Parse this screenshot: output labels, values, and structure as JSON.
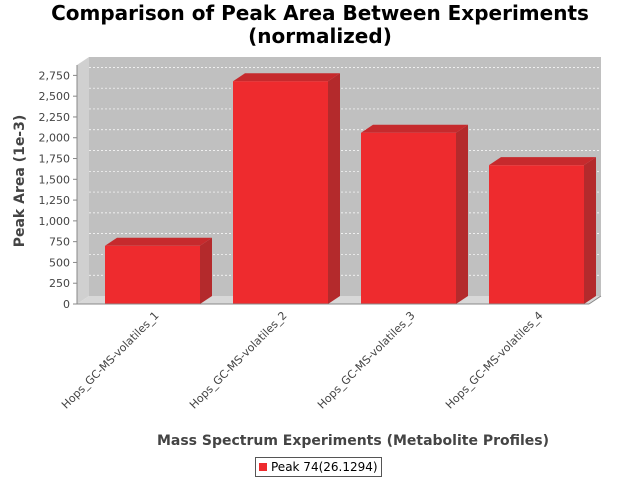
{
  "chart_data": {
    "type": "bar",
    "title_lines": [
      "Comparison of Peak Area Between Experiments",
      "(normalized)"
    ],
    "xlabel": "Mass Spectrum Experiments (Metabolite Profiles)",
    "ylabel": "Peak Area (1e-3)",
    "categories": [
      "Hops_GC-MS-volatiles_1",
      "Hops_GC-MS-volatiles_2",
      "Hops_GC-MS-volatiles_3",
      "Hops_GC-MS-volatiles_4"
    ],
    "series": [
      {
        "name": "Peak 74(26.1294)",
        "values": [
          700,
          2680,
          2060,
          1670
        ],
        "color": "#ee2b2e"
      }
    ],
    "ylim": [
      0,
      2875
    ],
    "yticks": [
      0,
      250,
      500,
      750,
      1000,
      1250,
      1500,
      1750,
      2000,
      2250,
      2500,
      2750
    ],
    "ytick_labels": [
      "0",
      "250",
      "500",
      "750",
      "1,000",
      "1,250",
      "1,500",
      "1,750",
      "2,000",
      "2,250",
      "2,500",
      "2,750"
    ],
    "grid": true,
    "legend_position": "bottom",
    "plot_background": "#c0c0c0"
  }
}
